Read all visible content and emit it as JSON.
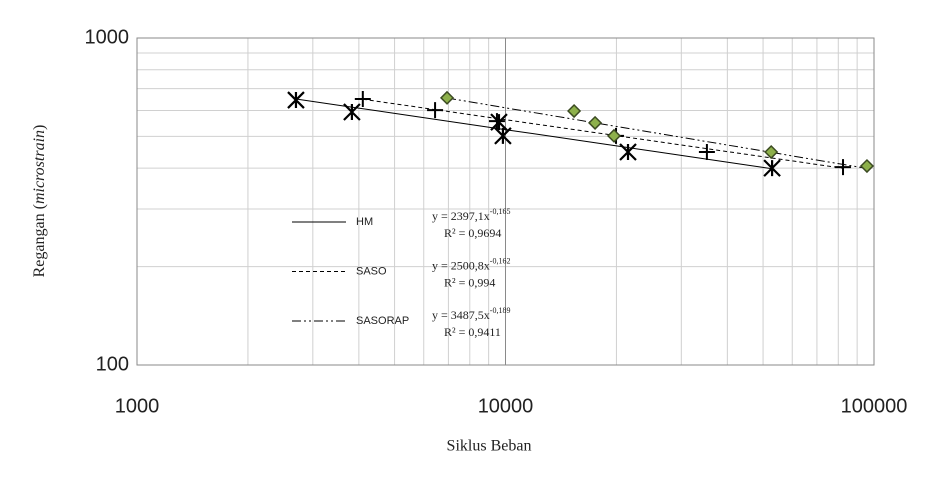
{
  "chart_data": {
    "type": "scatter",
    "log_x": true,
    "log_y": true,
    "grid": true,
    "minor_grid": true,
    "x_label": "Siklus Beban",
    "y_label_parts": [
      "Regangan (",
      "microstrain",
      ")"
    ],
    "xlim": [
      1000,
      100000
    ],
    "xticks": [
      1000,
      10000,
      100000
    ],
    "ylim": [
      100,
      1000
    ],
    "yticks": [
      100,
      1000
    ],
    "legend": "left",
    "series": [
      {
        "name": "HM",
        "marker": "asterisk",
        "color": "#000000",
        "dash": "solid",
        "x": [
          2700,
          3830,
          9600,
          9840,
          21500,
          52900
        ],
        "values": [
          646,
          594,
          553,
          502,
          448,
          400
        ],
        "trendline": {
          "coef": 2397.1,
          "exponent": -0.165,
          "label": "y = 2397,1x",
          "exponent_label": "-0,165",
          "r2_label": "R² = 0,9694"
        }
      },
      {
        "name": "SASO",
        "marker": "plus",
        "color": "#000000",
        "dash": "dashed",
        "x": [
          4100,
          6440,
          9480,
          19950,
          35200,
          82400
        ],
        "values": [
          651,
          602,
          557,
          502,
          448,
          403
        ],
        "trendline": {
          "coef": 2500.8,
          "exponent": -0.162,
          "label": "y = 2500,8x",
          "exponent_label": "-0,162",
          "r2_label": "R² = 0,994"
        }
      },
      {
        "name": "SASORAP",
        "marker": "diamond",
        "color": "#8db04b",
        "dash": "dashdotdot",
        "x": [
          6940,
          15350,
          17500,
          19700,
          52600,
          95700
        ],
        "values": [
          656,
          598,
          550,
          502,
          448,
          406
        ],
        "trendline": {
          "coef": 3487.5,
          "exponent": -0.189,
          "label": "y = 3487,5x",
          "exponent_label": "-0,189",
          "r2_label": "R² = 0,9411"
        }
      }
    ]
  }
}
